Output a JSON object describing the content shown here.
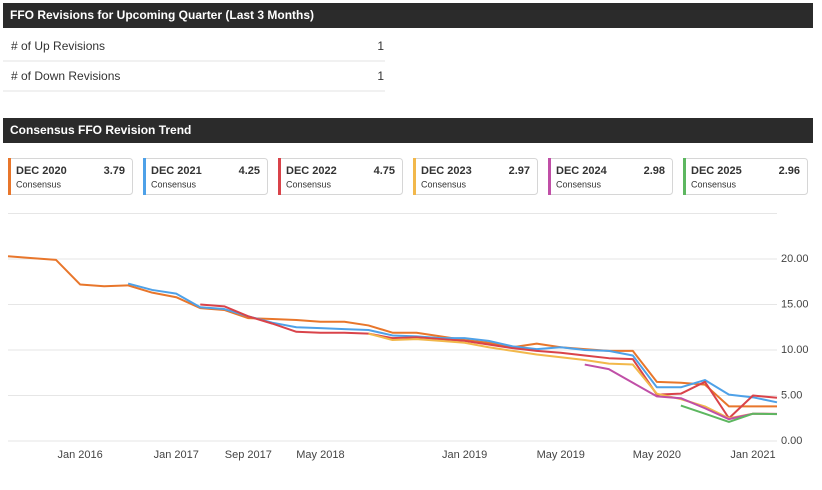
{
  "revisions": {
    "title": "FFO Revisions for Upcoming Quarter (Last 3 Months)",
    "rows": [
      [
        "# of Up Revisions",
        1
      ],
      [
        "# of Down Revisions",
        1
      ]
    ]
  },
  "chart_data": {
    "type": "line",
    "title": "Consensus FFO Revision Trend",
    "legend_sublabel": "Consensus",
    "categories": [
      null,
      null,
      null,
      "Jan 2016",
      null,
      null,
      null,
      "Jan 2017",
      null,
      null,
      "Sep 2017",
      null,
      null,
      "May 2018",
      null,
      null,
      null,
      null,
      null,
      "Jan 2019",
      null,
      null,
      null,
      "May 2019",
      null,
      null,
      null,
      "May 2020",
      null,
      null,
      null,
      "Jan 2021",
      null
    ],
    "ylim": [
      0,
      25
    ],
    "yticks": [
      {
        "value": 0,
        "label": "0.00"
      },
      {
        "value": 5,
        "label": "5.00"
      },
      {
        "value": 10,
        "label": "10.00"
      },
      {
        "value": 15,
        "label": "15.00"
      },
      {
        "value": 20,
        "label": "20.00"
      }
    ],
    "grid": true,
    "series": [
      {
        "name": "DEC 2020",
        "consensus": 3.79,
        "color": "#e8762b",
        "values": [
          20.3,
          20.1,
          19.9,
          17.2,
          17.0,
          17.1,
          16.3,
          15.8,
          14.6,
          14.4,
          13.5,
          13.4,
          13.3,
          13.1,
          13.1,
          12.7,
          11.9,
          11.9,
          11.5,
          11.1,
          10.8,
          10.3,
          10.7,
          10.3,
          10.1,
          9.9,
          9.9,
          6.5,
          6.4,
          6.2,
          3.8,
          3.8,
          3.8
        ]
      },
      {
        "name": "DEC 2021",
        "consensus": 4.25,
        "color": "#4ea1e8",
        "values": [
          null,
          null,
          null,
          null,
          null,
          17.3,
          16.6,
          16.2,
          14.7,
          14.5,
          13.7,
          13.0,
          12.5,
          12.4,
          12.3,
          12.2,
          11.6,
          11.5,
          11.3,
          11.3,
          11.0,
          10.4,
          10.1,
          10.3,
          10.0,
          9.9,
          9.4,
          5.9,
          5.9,
          6.7,
          5.1,
          4.8,
          4.25
        ]
      },
      {
        "name": "DEC 2022",
        "consensus": 4.75,
        "color": "#d9434a",
        "values": [
          null,
          null,
          null,
          null,
          null,
          null,
          null,
          null,
          15.0,
          14.8,
          13.7,
          12.9,
          12.0,
          11.9,
          11.9,
          11.8,
          11.3,
          11.4,
          11.2,
          11.0,
          10.6,
          10.2,
          9.9,
          9.7,
          9.4,
          9.1,
          9.0,
          5.1,
          5.2,
          6.5,
          2.5,
          5.0,
          4.75
        ]
      },
      {
        "name": "DEC 2023",
        "consensus": 2.97,
        "color": "#f2b84b",
        "values": [
          null,
          null,
          null,
          null,
          null,
          null,
          null,
          null,
          null,
          null,
          null,
          null,
          null,
          null,
          null,
          11.8,
          11.1,
          11.2,
          11.0,
          10.8,
          10.3,
          9.9,
          9.5,
          9.2,
          8.9,
          8.5,
          8.4,
          5.2,
          4.6,
          3.8,
          2.5,
          3.0,
          2.97
        ]
      },
      {
        "name": "DEC 2024",
        "consensus": 2.98,
        "color": "#c04fa7",
        "values": [
          null,
          null,
          null,
          null,
          null,
          null,
          null,
          null,
          null,
          null,
          null,
          null,
          null,
          null,
          null,
          null,
          null,
          null,
          null,
          null,
          null,
          null,
          null,
          null,
          8.4,
          7.9,
          6.4,
          4.9,
          4.7,
          3.6,
          2.4,
          3.0,
          2.98
        ]
      },
      {
        "name": "DEC 2025",
        "consensus": 2.96,
        "color": "#5db760",
        "values": [
          null,
          null,
          null,
          null,
          null,
          null,
          null,
          null,
          null,
          null,
          null,
          null,
          null,
          null,
          null,
          null,
          null,
          null,
          null,
          null,
          null,
          null,
          null,
          null,
          null,
          null,
          null,
          null,
          3.9,
          3.0,
          2.1,
          3.0,
          2.96
        ]
      }
    ]
  }
}
